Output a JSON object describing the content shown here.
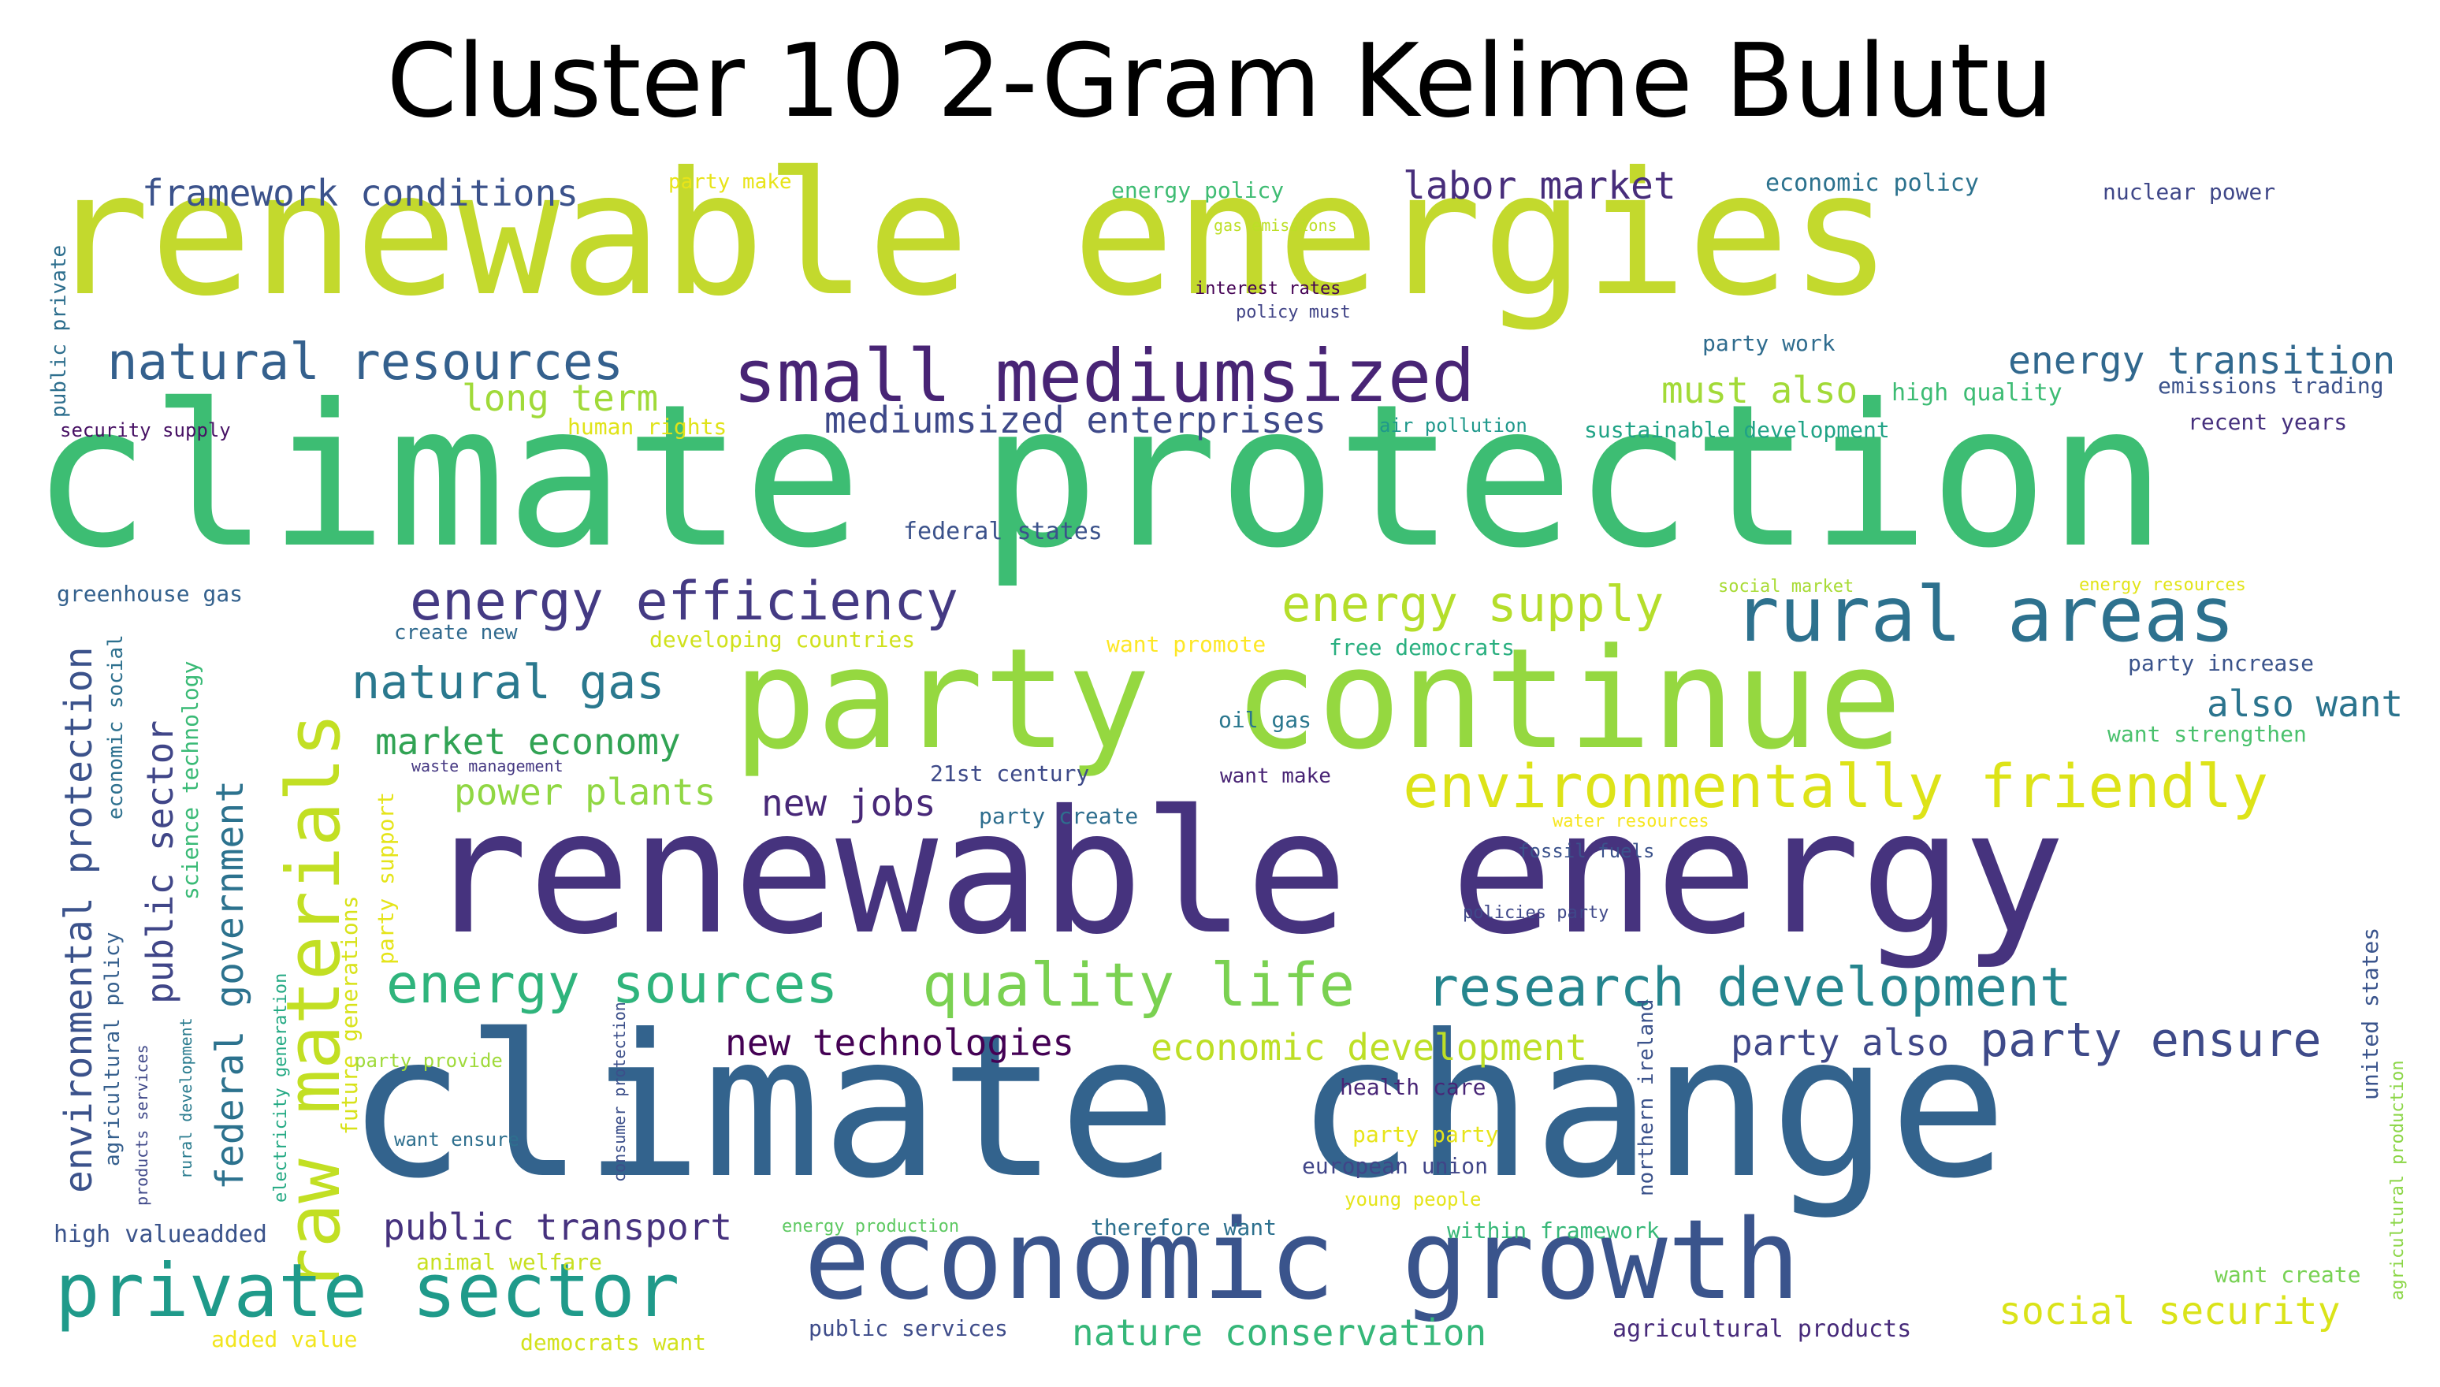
{
  "title": "Cluster 10 2-Gram Kelime Bulutu",
  "palette": [
    "#440154",
    "#472c7a",
    "#3b518b",
    "#2c718e",
    "#21908d",
    "#27ad81",
    "#5cc863",
    "#aadc32",
    "#fde725"
  ],
  "words": [
    {
      "text": "renewable energies",
      "color": "#c3d92d"
    },
    {
      "text": "climate protection",
      "color": "#3dbd73"
    },
    {
      "text": "climate change",
      "color": "#33638d"
    },
    {
      "text": "renewable energy",
      "color": "#46337e"
    },
    {
      "text": "party continue",
      "color": "#95d840"
    },
    {
      "text": "economic growth",
      "color": "#3a548c"
    },
    {
      "text": "raw materials",
      "color": "#c2df23"
    },
    {
      "text": "private sector",
      "color": "#1f9a8a"
    },
    {
      "text": "small mediumsized",
      "color": "#482475"
    },
    {
      "text": "rural areas",
      "color": "#2d718e"
    },
    {
      "text": "environmentally friendly",
      "color": "#dde318"
    },
    {
      "text": "quality life",
      "color": "#7ad151"
    },
    {
      "text": "research development",
      "color": "#25858e"
    },
    {
      "text": "energy sources",
      "color": "#2fb47c"
    },
    {
      "text": "energy efficiency",
      "color": "#443a83"
    },
    {
      "text": "natural resources",
      "color": "#34608d"
    },
    {
      "text": "energy supply",
      "color": "#b5de2b"
    },
    {
      "text": "natural gas",
      "color": "#2a788e"
    },
    {
      "text": "party ensure",
      "color": "#3e4a89"
    },
    {
      "text": "federal government",
      "color": "#2c728e"
    },
    {
      "text": "environmental protection",
      "color": "#3b528b"
    },
    {
      "text": "public sector",
      "color": "#404688"
    },
    {
      "text": "energy transition",
      "color": "#31688e"
    },
    {
      "text": "mediumsized enterprises",
      "color": "#3e4989"
    },
    {
      "text": "new technologies",
      "color": "#440154"
    },
    {
      "text": "public transport",
      "color": "#46327e"
    },
    {
      "text": "nature conservation",
      "color": "#35b779"
    },
    {
      "text": "social security",
      "color": "#dae319"
    },
    {
      "text": "economic development",
      "color": "#bddf26"
    },
    {
      "text": "market economy",
      "color": "#31a354"
    },
    {
      "text": "power plants",
      "color": "#90d743"
    },
    {
      "text": "framework conditions",
      "color": "#3b528b"
    },
    {
      "text": "labor market",
      "color": "#472d7b"
    },
    {
      "text": "long term",
      "color": "#a0da39"
    },
    {
      "text": "must also",
      "color": "#a2da37"
    },
    {
      "text": "new jobs",
      "color": "#482878"
    },
    {
      "text": "party also",
      "color": "#3f4788"
    },
    {
      "text": "also want",
      "color": "#2b748e"
    },
    {
      "text": "party support",
      "color": "#e5e419"
    },
    {
      "text": "future generations",
      "color": "#d8e219"
    },
    {
      "text": "economic social",
      "color": "#2d708e"
    },
    {
      "text": "science technology",
      "color": "#3aba76"
    },
    {
      "text": "agricultural policy",
      "color": "#355f8d"
    },
    {
      "text": "products services",
      "color": "#3f4889"
    },
    {
      "text": "rural development",
      "color": "#297b8e"
    },
    {
      "text": "electricity generation",
      "color": "#23a983"
    },
    {
      "text": "consumer protection",
      "color": "#3c4f8a"
    },
    {
      "text": "northern ireland",
      "color": "#3b528b"
    },
    {
      "text": "united states",
      "color": "#3a548c"
    },
    {
      "text": "agricultural production",
      "color": "#8bd646"
    },
    {
      "text": "public private",
      "color": "#2e6f8e"
    },
    {
      "text": "security supply",
      "color": "#471164"
    },
    {
      "text": "greenhouse gas",
      "color": "#34618d"
    },
    {
      "text": "high valueadded",
      "color": "#3a538b"
    },
    {
      "text": "animal welfare",
      "color": "#c8e020"
    },
    {
      "text": "added value",
      "color": "#f1e51d"
    },
    {
      "text": "democrats want",
      "color": "#d2e21b"
    },
    {
      "text": "public services",
      "color": "#3e4c8a"
    },
    {
      "text": "agricultural products",
      "color": "#472a7a"
    },
    {
      "text": "want create",
      "color": "#77d153"
    },
    {
      "text": "party make",
      "color": "#e8e419"
    },
    {
      "text": "energy policy",
      "color": "#3fbc73"
    },
    {
      "text": "gas emissions",
      "color": "#bddf26"
    },
    {
      "text": "economic policy",
      "color": "#2c728e"
    },
    {
      "text": "nuclear power",
      "color": "#3f4788"
    },
    {
      "text": "interest rates",
      "color": "#440154"
    },
    {
      "text": "policy must",
      "color": "#414487"
    },
    {
      "text": "party work",
      "color": "#2f6c8e"
    },
    {
      "text": "high quality",
      "color": "#3dbc74"
    },
    {
      "text": "emissions trading",
      "color": "#3b528b"
    },
    {
      "text": "human rights",
      "color": "#e0e318"
    },
    {
      "text": "air pollution",
      "color": "#1f988b"
    },
    {
      "text": "sustainable development",
      "color": "#20a386"
    },
    {
      "text": "recent years",
      "color": "#46307e"
    },
    {
      "text": "federal states",
      "color": "#3b528b"
    },
    {
      "text": "social market",
      "color": "#a8db34"
    },
    {
      "text": "energy resources",
      "color": "#e2e418"
    },
    {
      "text": "party increase",
      "color": "#3a538b"
    },
    {
      "text": "create new",
      "color": "#306a8e"
    },
    {
      "text": "developing countries",
      "color": "#d0e11c"
    },
    {
      "text": "want promote",
      "color": "#fde725"
    },
    {
      "text": "free democrats",
      "color": "#29af7f"
    },
    {
      "text": "oil gas",
      "color": "#2a778e"
    },
    {
      "text": "want strengthen",
      "color": "#4ac16d"
    },
    {
      "text": "waste management",
      "color": "#453882"
    },
    {
      "text": "21st century",
      "color": "#3e4a89"
    },
    {
      "text": "want make",
      "color": "#482374"
    },
    {
      "text": "party create",
      "color": "#2e6e8e"
    },
    {
      "text": "water resources",
      "color": "#f6e620"
    },
    {
      "text": "fossil fuels",
      "color": "#3b528b"
    },
    {
      "text": "policies party",
      "color": "#3f4889"
    },
    {
      "text": "party provide",
      "color": "#9fda3a"
    },
    {
      "text": "want ensure",
      "color": "#2e6f8e"
    },
    {
      "text": "health care",
      "color": "#482576"
    },
    {
      "text": "party party",
      "color": "#e7e419"
    },
    {
      "text": "european union",
      "color": "#404588"
    },
    {
      "text": "young people",
      "color": "#e5e419"
    },
    {
      "text": "energy production",
      "color": "#5ec962"
    },
    {
      "text": "therefore want",
      "color": "#2d708e"
    },
    {
      "text": "within framework",
      "color": "#37b878"
    }
  ]
}
